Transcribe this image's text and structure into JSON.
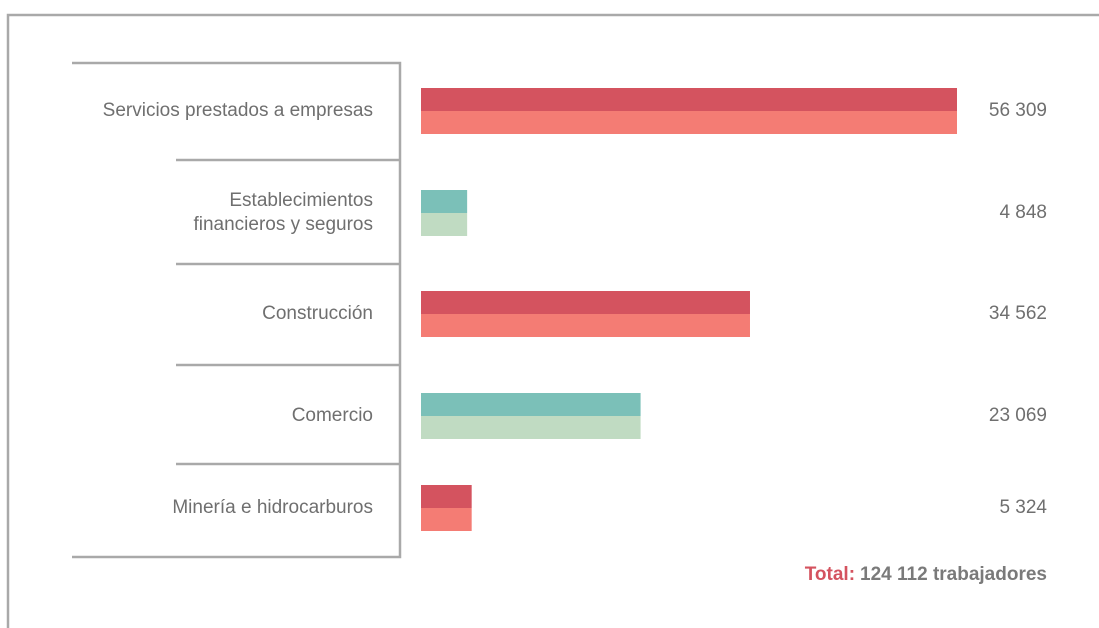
{
  "chart_data": {
    "type": "bar",
    "orientation": "horizontal",
    "categories": [
      [
        "Servicios prestados a empresas"
      ],
      [
        "Establecimientos",
        "financieros y seguros"
      ],
      [
        "Construcción"
      ],
      [
        "Comercio"
      ],
      [
        "Minería e hidrocarburos"
      ]
    ],
    "values": [
      56309,
      4848,
      34562,
      23069,
      5324
    ],
    "value_labels": [
      "56 309",
      "4 848",
      "34 562",
      "23 069",
      "5 324"
    ],
    "colors": [
      [
        "#d4535f",
        "#f47c74"
      ],
      [
        "#7bc0b8",
        "#c0dbc2"
      ],
      [
        "#d4535f",
        "#f47c74"
      ],
      [
        "#7bc0b8",
        "#c0dbc2"
      ],
      [
        "#d4535f",
        "#f47c74"
      ]
    ],
    "total": {
      "label": "Total:",
      "text": "124 112 trabajadores"
    }
  }
}
